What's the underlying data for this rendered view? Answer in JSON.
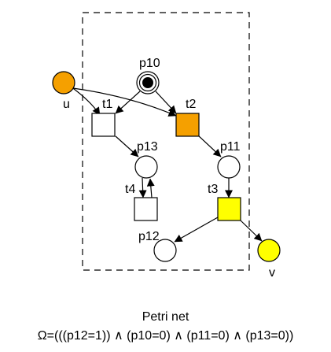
{
  "diagram": {
    "type": "petri-net",
    "colors": {
      "stroke": "#000000",
      "background": "#ffffff",
      "interface_place": "#f5a000",
      "fired_transition": "#f5a000",
      "enabled_transition": "#ffff00",
      "output_place": "#ffff00",
      "token": "#000000"
    },
    "places": {
      "u": "u",
      "v": "v",
      "p10": "p10",
      "p11": "p11",
      "p12": "p12",
      "p13": "p13"
    },
    "transitions": {
      "t1": "t1",
      "t2": "t2",
      "t3": "t3",
      "t4": "t4"
    },
    "tokens": {
      "p10": 1
    }
  },
  "caption": {
    "title": "Petri net",
    "formula": "Ω=(((p12=1)) ∧ (p10=0) ∧ (p11=0) ∧ (p13=0))"
  }
}
